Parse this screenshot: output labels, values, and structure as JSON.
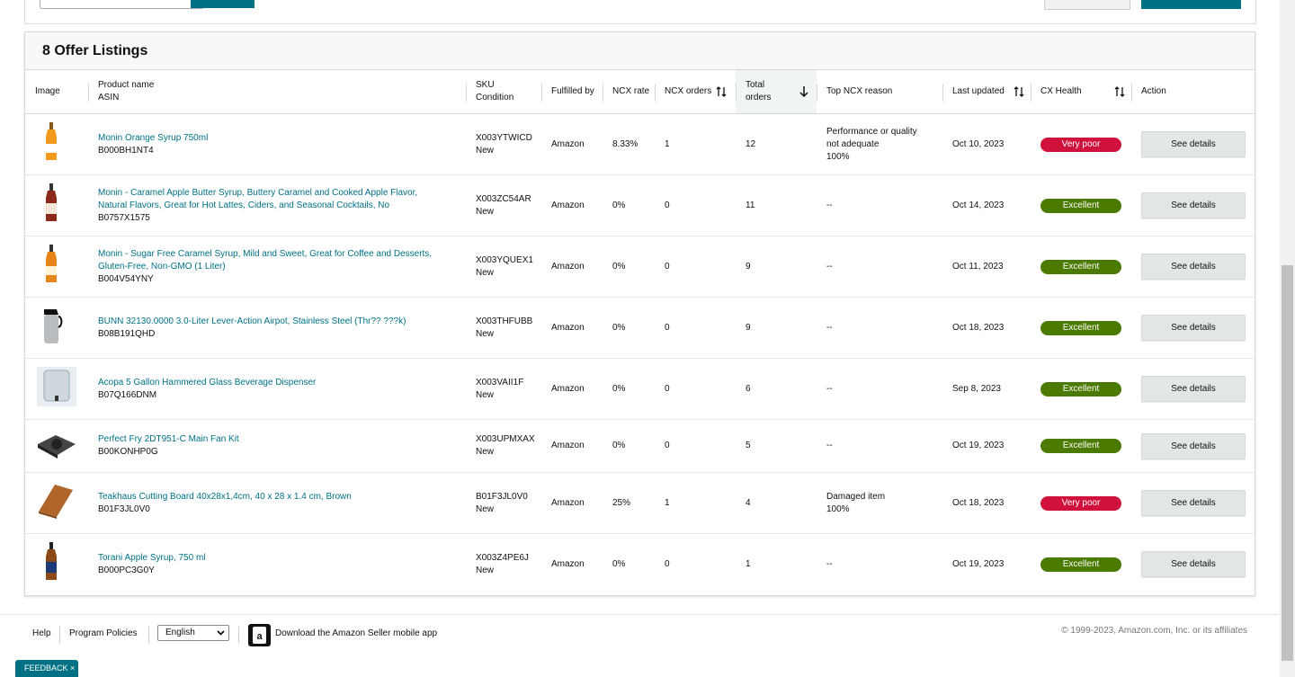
{
  "header": {
    "title": "8 Offer Listings"
  },
  "table": {
    "columns": {
      "image": "Image",
      "product": "Product name",
      "asin": "ASIN",
      "sku": "SKU",
      "condition": "Condition",
      "fulfilled_by": "Fulfilled by",
      "ncx_rate": "NCX rate",
      "ncx_orders": "NCX orders",
      "total_orders": "Total orders",
      "top_ncx_reason": "Top NCX reason",
      "last_updated": "Last updated",
      "cx_health": "CX Health",
      "action": "Action"
    },
    "rows": [
      {
        "product": "Monin Orange Syrup 750ml",
        "asin": "B000BH1NT4",
        "sku": "X003YTWICD",
        "condition": "New",
        "fulfilled_by": "Amazon",
        "ncx_rate": "8.33%",
        "ncx_orders": 1,
        "total_orders": 12,
        "top_ncx_reason": [
          "Performance or quality not adequate",
          "100%"
        ],
        "last_updated": "Oct 10, 2023",
        "cx_health": "Very poor",
        "health_color": "#d0113b",
        "action": "See details"
      },
      {
        "product": "Monin - Caramel Apple Butter Syrup, Buttery Caramel and Cooked Apple Flavor, Natural Flavors, Great for Hot Lattes, Ciders, and Seasonal Cocktails, No",
        "asin": "B0757X1575",
        "sku": "X003ZC54AR",
        "condition": "New",
        "fulfilled_by": "Amazon",
        "ncx_rate": "0%",
        "ncx_orders": 0,
        "total_orders": 11,
        "top_ncx_reason": [
          "--"
        ],
        "last_updated": "Oct 14, 2023",
        "cx_health": "Excellent",
        "health_color": "#4b7a00",
        "action": "See details"
      },
      {
        "product": "Monin - Sugar Free Caramel Syrup, Mild and Sweet, Great for Coffee and Desserts, Gluten-Free, Non-GMO (1 Liter)",
        "asin": "B004V54YNY",
        "sku": "X003YQUEX1",
        "condition": "New",
        "fulfilled_by": "Amazon",
        "ncx_rate": "0%",
        "ncx_orders": 0,
        "total_orders": 9,
        "top_ncx_reason": [
          "--"
        ],
        "last_updated": "Oct 11, 2023",
        "cx_health": "Excellent",
        "health_color": "#4b7a00",
        "action": "See details"
      },
      {
        "product": "BUNN 32130.0000 3.0-Liter Lever-Action Airpot, Stainless Steel (Thr?? ???k)",
        "asin": "B08B191QHD",
        "sku": "X003THFUBB",
        "condition": "New",
        "fulfilled_by": "Amazon",
        "ncx_rate": "0%",
        "ncx_orders": 0,
        "total_orders": 9,
        "top_ncx_reason": [
          "--"
        ],
        "last_updated": "Oct 18, 2023",
        "cx_health": "Excellent",
        "health_color": "#4b7a00",
        "action": "See details"
      },
      {
        "product": "Acopa 5 Gallon Hammered Glass Beverage Dispenser",
        "asin": "B07Q166DNM",
        "sku": "X003VAII1F",
        "condition": "New",
        "fulfilled_by": "Amazon",
        "ncx_rate": "0%",
        "ncx_orders": 0,
        "total_orders": 6,
        "top_ncx_reason": [
          "--"
        ],
        "last_updated": "Sep 8, 2023",
        "cx_health": "Excellent",
        "health_color": "#4b7a00",
        "action": "See details"
      },
      {
        "product": "Perfect Fry 2DT951-C Main Fan Kit",
        "asin": "B00KONHP0G",
        "sku": "X003UPMXAX",
        "condition": "New",
        "fulfilled_by": "Amazon",
        "ncx_rate": "0%",
        "ncx_orders": 0,
        "total_orders": 5,
        "top_ncx_reason": [
          "--"
        ],
        "last_updated": "Oct 19, 2023",
        "cx_health": "Excellent",
        "health_color": "#4b7a00",
        "action": "See details"
      },
      {
        "product": "Teakhaus Cutting Board 40x28x1,4cm, 40 x 28 x 1.4 cm, Brown",
        "asin": "B01F3JL0V0",
        "sku": "B01F3JL0V0",
        "condition": "New",
        "fulfilled_by": "Amazon",
        "ncx_rate": "25%",
        "ncx_orders": 1,
        "total_orders": 4,
        "top_ncx_reason": [
          "Damaged item",
          "100%"
        ],
        "last_updated": "Oct 18, 2023",
        "cx_health": "Very poor",
        "health_color": "#d0113b",
        "action": "See details"
      },
      {
        "product": "Torani Apple Syrup, 750 ml",
        "asin": "B000PC3G0Y",
        "sku": "X003Z4PE6J",
        "condition": "New",
        "fulfilled_by": "Amazon",
        "ncx_rate": "0%",
        "ncx_orders": 0,
        "total_orders": 1,
        "top_ncx_reason": [
          "--"
        ],
        "last_updated": "Oct 19, 2023",
        "cx_health": "Excellent",
        "health_color": "#4b7a00",
        "action": "See details"
      }
    ]
  },
  "footer": {
    "links": [
      "Help",
      "Program Policies"
    ],
    "language": "English",
    "app": "Download the Amazon Seller mobile app",
    "copyright": "© 1999-2023, Amazon.com, Inc. or its affiliates",
    "feedback": "FEEDBACK"
  }
}
